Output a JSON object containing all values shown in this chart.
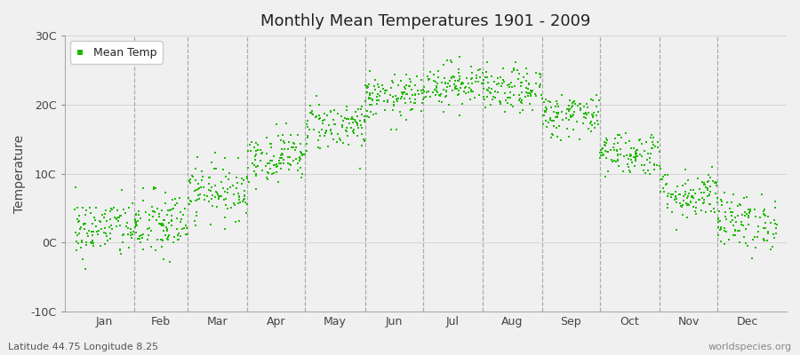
{
  "title": "Monthly Mean Temperatures 1901 - 2009",
  "ylabel": "Temperature",
  "xlabel_labels": [
    "Jan",
    "Feb",
    "Mar",
    "Apr",
    "May",
    "Jun",
    "Jul",
    "Aug",
    "Sep",
    "Oct",
    "Nov",
    "Dec"
  ],
  "ytick_labels": [
    "-10C",
    "0C",
    "10C",
    "20C",
    "30C"
  ],
  "ytick_values": [
    -10,
    0,
    10,
    20,
    30
  ],
  "ylim": [
    -10,
    30
  ],
  "legend_label": "Mean Temp",
  "dot_color": "#22bb00",
  "bg_color": "#f0f0f0",
  "plot_bg_color": "#f0f0f0",
  "grid_color": "#999999",
  "subtitle": "Latitude 44.75 Longitude 8.25",
  "watermark": "worldspecies.org",
  "start_year": 1901,
  "end_year": 2009,
  "monthly_means": [
    2.0,
    2.5,
    7.5,
    12.5,
    17.0,
    21.0,
    23.0,
    22.0,
    18.5,
    13.0,
    7.0,
    3.0
  ],
  "monthly_stds": [
    2.2,
    2.5,
    2.0,
    1.8,
    1.8,
    1.6,
    1.6,
    1.6,
    1.6,
    1.6,
    1.8,
    2.0
  ],
  "seed": 42,
  "n_months": 12,
  "days_in_months": [
    31,
    28,
    31,
    30,
    31,
    30,
    31,
    31,
    30,
    31,
    30,
    31
  ]
}
